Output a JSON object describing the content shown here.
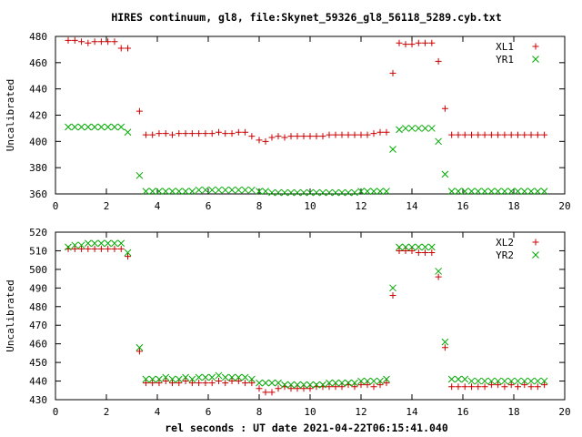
{
  "title": "HIRES continuum, gl8, file:Skynet_59326_gl8_56118_5289.cyb.txt",
  "xlabel": "rel seconds : UT date 2021-04-22T06:15:41.040",
  "colors": {
    "red": "#cc0000",
    "green": "#00aa00",
    "frame": "#000000"
  },
  "chart_data": [
    {
      "type": "scatter",
      "ylabel": "Uncalibrated",
      "xlim": [
        0,
        20
      ],
      "ylim": [
        360,
        480
      ],
      "x_ticks": [
        "0",
        "2",
        "4",
        "6",
        "8",
        "10",
        "12",
        "14",
        "16",
        "18",
        "20"
      ],
      "y_ticks": [
        "360",
        "380",
        "400",
        "420",
        "440",
        "460",
        "480"
      ],
      "legend_position": "top-right",
      "x": [
        0.5,
        0.76,
        1.02,
        1.28,
        1.54,
        1.8,
        2.06,
        2.32,
        2.58,
        2.84,
        3.3,
        3.55,
        3.81,
        4.07,
        4.33,
        4.59,
        4.85,
        5.11,
        5.37,
        5.63,
        5.89,
        6.15,
        6.41,
        6.67,
        6.93,
        7.19,
        7.45,
        7.71,
        8.0,
        8.25,
        8.5,
        8.75,
        9.0,
        9.25,
        9.5,
        9.75,
        10.0,
        10.25,
        10.5,
        10.75,
        11.0,
        11.25,
        11.5,
        11.75,
        12.0,
        12.25,
        12.5,
        12.75,
        13.0,
        13.25,
        13.5,
        13.75,
        14.0,
        14.26,
        14.52,
        14.78,
        15.04,
        15.3,
        15.56,
        15.82,
        16.08,
        16.34,
        16.6,
        16.86,
        17.12,
        17.38,
        17.64,
        17.9,
        18.16,
        18.42,
        18.68,
        18.94,
        19.2
      ],
      "series": [
        {
          "name": "XL1",
          "marker": "+",
          "color": "#cc0000",
          "values": [
            477,
            477,
            476,
            475,
            476,
            476,
            476,
            476,
            471,
            471,
            423,
            405,
            405,
            406,
            406,
            405,
            406,
            406,
            406,
            406,
            406,
            406,
            407,
            406,
            406,
            407,
            407,
            404,
            401,
            400,
            403,
            404,
            403,
            404,
            404,
            404,
            404,
            404,
            404,
            405,
            405,
            405,
            405,
            405,
            405,
            405,
            406,
            407,
            407,
            452,
            475,
            474,
            474,
            475,
            475,
            475,
            461,
            425,
            405,
            405,
            405,
            405,
            405,
            405,
            405,
            405,
            405,
            405,
            405,
            405,
            405,
            405,
            405
          ]
        },
        {
          "name": "YR1",
          "marker": "x",
          "color": "#00aa00",
          "values": [
            411,
            411,
            411,
            411,
            411,
            411,
            411,
            411,
            411,
            407,
            374,
            362,
            362,
            362,
            362,
            362,
            362,
            362,
            362,
            363,
            363,
            363,
            363,
            363,
            363,
            363,
            363,
            363,
            362,
            362,
            361,
            361,
            361,
            361,
            361,
            361,
            361,
            361,
            361,
            361,
            361,
            361,
            361,
            361,
            362,
            362,
            362,
            362,
            362,
            394,
            409,
            410,
            410,
            410,
            410,
            410,
            400,
            375,
            362,
            362,
            362,
            362,
            362,
            362,
            362,
            362,
            362,
            362,
            362,
            362,
            362,
            362,
            362
          ]
        }
      ]
    },
    {
      "type": "scatter",
      "ylabel": "Uncalibrated",
      "xlim": [
        0,
        20
      ],
      "ylim": [
        430,
        520
      ],
      "x_ticks": [
        "0",
        "2",
        "4",
        "6",
        "8",
        "10",
        "12",
        "14",
        "16",
        "18",
        "20"
      ],
      "y_ticks": [
        "430",
        "440",
        "450",
        "460",
        "470",
        "480",
        "490",
        "500",
        "510",
        "520"
      ],
      "legend_position": "top-right",
      "x": [
        0.5,
        0.76,
        1.02,
        1.28,
        1.54,
        1.8,
        2.06,
        2.32,
        2.58,
        2.84,
        3.3,
        3.55,
        3.81,
        4.07,
        4.33,
        4.59,
        4.85,
        5.11,
        5.37,
        5.63,
        5.89,
        6.15,
        6.41,
        6.67,
        6.93,
        7.19,
        7.45,
        7.71,
        8.0,
        8.25,
        8.5,
        8.75,
        9.0,
        9.25,
        9.5,
        9.75,
        10.0,
        10.25,
        10.5,
        10.75,
        11.0,
        11.25,
        11.5,
        11.75,
        12.0,
        12.25,
        12.5,
        12.75,
        13.0,
        13.25,
        13.5,
        13.75,
        14.0,
        14.26,
        14.52,
        14.78,
        15.04,
        15.3,
        15.56,
        15.82,
        16.08,
        16.34,
        16.6,
        16.86,
        17.12,
        17.38,
        17.64,
        17.9,
        18.16,
        18.42,
        18.68,
        18.94,
        19.2
      ],
      "series": [
        {
          "name": "XL2",
          "marker": "+",
          "color": "#cc0000",
          "values": [
            511,
            511,
            511,
            511,
            511,
            511,
            511,
            511,
            511,
            507,
            456,
            439,
            439,
            439,
            440,
            439,
            439,
            440,
            439,
            439,
            439,
            439,
            440,
            439,
            440,
            440,
            439,
            439,
            436,
            434,
            434,
            436,
            437,
            436,
            436,
            436,
            436,
            437,
            437,
            437,
            437,
            437,
            438,
            437,
            438,
            438,
            437,
            438,
            439,
            486,
            510,
            510,
            510,
            509,
            509,
            509,
            496,
            458,
            437,
            437,
            437,
            437,
            437,
            437,
            438,
            438,
            437,
            438,
            437,
            438,
            437,
            437,
            438
          ]
        },
        {
          "name": "YR2",
          "marker": "x",
          "color": "#00aa00",
          "values": [
            512,
            513,
            513,
            514,
            514,
            514,
            514,
            514,
            514,
            509,
            458,
            441,
            441,
            441,
            442,
            441,
            441,
            442,
            441,
            442,
            442,
            442,
            443,
            442,
            442,
            442,
            442,
            441,
            439,
            439,
            439,
            439,
            438,
            438,
            438,
            438,
            438,
            438,
            438,
            439,
            439,
            439,
            439,
            439,
            440,
            440,
            440,
            440,
            441,
            490,
            512,
            512,
            512,
            512,
            512,
            512,
            499,
            461,
            441,
            441,
            441,
            440,
            440,
            440,
            440,
            440,
            440,
            440,
            440,
            440,
            440,
            440,
            440
          ]
        }
      ]
    }
  ]
}
